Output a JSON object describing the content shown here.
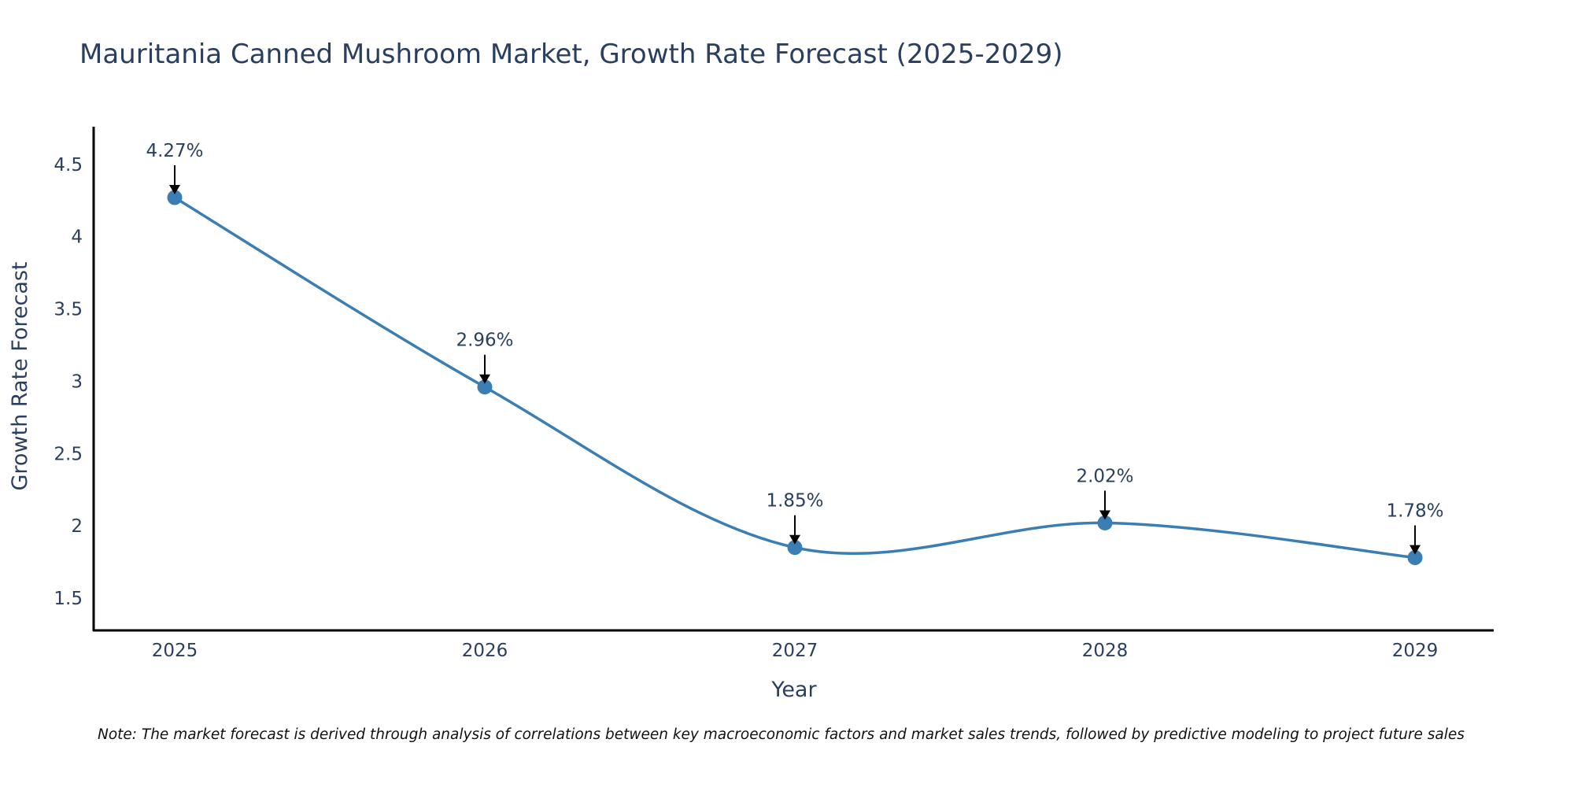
{
  "chart_data": {
    "type": "line",
    "title": "Mauritania Canned Mushroom Market, Growth Rate Forecast (2025-2029)",
    "xlabel": "Year",
    "ylabel": "Growth Rate Forecast",
    "categories": [
      "2025",
      "2026",
      "2027",
      "2028",
      "2029"
    ],
    "values": [
      4.27,
      2.96,
      1.85,
      2.02,
      1.78
    ],
    "data_labels": [
      "4.27%",
      "2.96%",
      "1.85%",
      "2.02%",
      "1.78%"
    ],
    "yticks": [
      1.5,
      2,
      2.5,
      3,
      3.5,
      4,
      4.5
    ],
    "ytick_labels": [
      "1.5",
      "2",
      "2.5",
      "3",
      "3.5",
      "4",
      "4.5"
    ],
    "ylim": [
      1.277,
      4.76
    ],
    "grid": false,
    "line_shape": "spline",
    "color": "#3a7eb3",
    "note": "Note: The market forecast is derived through analysis of correlations between key macroeconomic factors and market sales trends, followed by predictive modeling to project future sales"
  }
}
